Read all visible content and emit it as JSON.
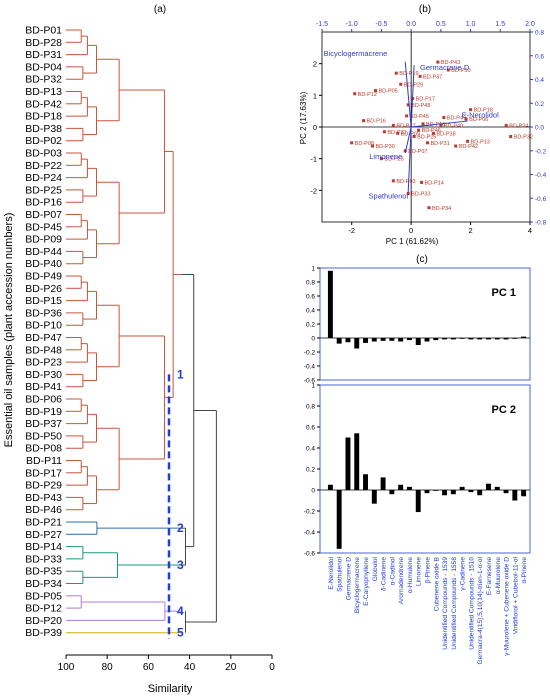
{
  "chart_data": [
    {
      "type": "dendrogram",
      "panel_label": "(a)",
      "xlabel": "Similarity",
      "ylabel": "Essential oil samples (plant accession numbers)",
      "xlim": [
        100,
        0
      ],
      "xticks": [
        "100",
        "80",
        "60",
        "40",
        "20",
        "0"
      ],
      "leaves": [
        "BD-P01",
        "BD-P28",
        "BD-P31",
        "BD-P04",
        "BD-P32",
        "BD-P13",
        "BD-P42",
        "BD-P18",
        "BD-P38",
        "BD-P02",
        "BD-P03",
        "BD-P22",
        "BD-P24",
        "BD-P25",
        "BD-P16",
        "BD-P07",
        "BD-P45",
        "BD-P09",
        "BD-P44",
        "BD-P40",
        "BD-P49",
        "BD-P26",
        "BD-P15",
        "BD-P36",
        "BD-P10",
        "BD-P47",
        "BD-P48",
        "BD-P23",
        "BD-P30",
        "BD-P41",
        "BD-P06",
        "BD-P19",
        "BD-P37",
        "BD-P50",
        "BD-P08",
        "BD-P11",
        "BD-P17",
        "BD-P29",
        "BD-P43",
        "BD-P46",
        "BD-P21",
        "BD-P27",
        "BD-P14",
        "BD-P33",
        "BD-P35",
        "BD-P34",
        "BD-P05",
        "BD-P12",
        "BD-P20",
        "BD-P39"
      ],
      "cut_similarity": 50,
      "clusters": [
        {
          "label": "1",
          "first_leaf": 0,
          "last_leaf": 39,
          "color": "#c8553d"
        },
        {
          "label": "2",
          "first_leaf": 40,
          "last_leaf": 41,
          "color": "#2b6cb0"
        },
        {
          "label": "3",
          "first_leaf": 42,
          "last_leaf": 45,
          "color": "#1a9c7a"
        },
        {
          "label": "4",
          "first_leaf": 46,
          "last_leaf": 48,
          "color": "#b07cd6"
        },
        {
          "label": "5",
          "first_leaf": 49,
          "last_leaf": 49,
          "color": "#d4b106"
        }
      ],
      "root_color": "#444444",
      "cut_color": "#1f3fd6"
    },
    {
      "type": "scatter",
      "panel_label": "(b)",
      "xlabel": "PC 1 (61.62%)",
      "ylabel": "PC 2 (17.63%)",
      "xlim": [
        -3,
        4
      ],
      "ylim": [
        -3,
        3
      ],
      "xticks": [
        -2,
        0,
        2,
        4
      ],
      "yticks": [
        -2,
        -1,
        0,
        1,
        2
      ],
      "top_xlim": [
        -1.5,
        2.0
      ],
      "top_xticks": [
        "-1.5",
        "-1.0",
        "-0.5",
        "0.0",
        "0.5",
        "1.0",
        "1.5",
        "2.0"
      ],
      "right_ylim": [
        -0.8,
        0.8
      ],
      "right_yticks": [
        "-0.8",
        "-0.6",
        "-0.4",
        "-0.2",
        "0.0",
        "0.2",
        "0.4",
        "0.6",
        "0.8"
      ],
      "point_color": "#c0392b",
      "loading_color": "#2e3ccc",
      "points": [
        {
          "label": "BD-P43",
          "x": 0.9,
          "y": 2.05
        },
        {
          "label": "BD-P50",
          "x": 1.25,
          "y": 1.8
        },
        {
          "label": "BD-P37",
          "x": 0.3,
          "y": 1.6
        },
        {
          "label": "BD-P19",
          "x": -0.5,
          "y": 1.7
        },
        {
          "label": "BD-P29",
          "x": -0.35,
          "y": 1.35
        },
        {
          "label": "BD-P12",
          "x": -1.9,
          "y": 1.05
        },
        {
          "label": "BD-P05",
          "x": -1.2,
          "y": 1.15
        },
        {
          "label": "BD-P17",
          "x": 0.05,
          "y": 0.9
        },
        {
          "label": "BD-P48",
          "x": -0.1,
          "y": 0.7
        },
        {
          "label": "BD-P18",
          "x": 2.0,
          "y": 0.55
        },
        {
          "label": "BD-P49",
          "x": 1.1,
          "y": 0.3
        },
        {
          "label": "BD-P06",
          "x": 1.85,
          "y": 0.25
        },
        {
          "label": "BD-P40",
          "x": 1.0,
          "y": 0.05
        },
        {
          "label": "BD-P24",
          "x": 3.2,
          "y": 0.05
        },
        {
          "label": "BD-P32",
          "x": 3.35,
          "y": -0.3
        },
        {
          "label": "BD-P13",
          "x": 1.9,
          "y": -0.45
        },
        {
          "label": "BD-P42",
          "x": 1.5,
          "y": -0.6
        },
        {
          "label": "BD-P09",
          "x": -0.45,
          "y": -0.2
        },
        {
          "label": "BD-P31",
          "x": 0.55,
          "y": -0.5
        },
        {
          "label": "BD-P25",
          "x": 0.1,
          "y": -0.3
        },
        {
          "label": "BD-P08",
          "x": -2.0,
          "y": -0.5
        },
        {
          "label": "BD-P30",
          "x": -1.3,
          "y": -0.6
        },
        {
          "label": "BD-P07",
          "x": -0.2,
          "y": -0.75
        },
        {
          "label": "BD-P23",
          "x": -1.0,
          "y": -1.0
        },
        {
          "label": "BD-P14",
          "x": 0.35,
          "y": -1.75
        },
        {
          "label": "BD-P03",
          "x": -0.6,
          "y": -1.7
        },
        {
          "label": "BD-P33",
          "x": -0.1,
          "y": -2.1
        },
        {
          "label": "BD-P34",
          "x": 0.6,
          "y": -2.55
        },
        {
          "label": "BD-P21",
          "x": -0.9,
          "y": -0.15
        },
        {
          "label": "BD-P45",
          "x": -0.15,
          "y": 0.35
        },
        {
          "label": "BD-P10",
          "x": 0.4,
          "y": 0.1
        },
        {
          "label": "BD-P47",
          "x": -0.6,
          "y": 0.05
        },
        {
          "label": "BD-P46",
          "x": 0.25,
          "y": -0.1
        },
        {
          "label": "BD-P16",
          "x": -1.6,
          "y": 0.2
        },
        {
          "label": "BD-P38",
          "x": 0.75,
          "y": -0.2
        }
      ],
      "loadings": [
        {
          "label": "Bicyclogermacrene",
          "x": -0.1,
          "y": 0.55
        },
        {
          "label": "Germacrene D",
          "x": 0.05,
          "y": 0.52
        },
        {
          "label": "E-Nerolidol",
          "x": 0.95,
          "y": 0.05
        },
        {
          "label": "Limonene",
          "x": -0.1,
          "y": -0.22
        },
        {
          "label": "Spathulenol",
          "x": -0.05,
          "y": -0.55
        }
      ]
    },
    {
      "type": "bar",
      "panel_label": "(c)",
      "categories": [
        "E-Nerolidol",
        "Spathulenol",
        "Germacrene D",
        "Bicyclogermacrene",
        "E-Caryophyllene",
        "Globulol",
        "δ-Cadinene",
        "α-Cadinol",
        "Aromadendrene",
        "α-Humulene",
        "Limonene",
        "β-Pinene",
        "Cubenene oxide B",
        "Unidentified Compounds - 1539",
        "Unidentified Compounds - 1558",
        "γ-Cadinene",
        "Unidentified Compounds - 1510",
        "Germacra-4(15),5,10(14)-trien-1-α-ol",
        "E-Farnesene",
        "α-Muurolene",
        "γ-Muurolene + Cubenene oxide D",
        "Viridiflorol + Cubebol-11-ol",
        "α-Pinene"
      ],
      "ylim": [
        -0.6,
        1.0
      ],
      "yticks": [
        "1",
        "0.8",
        "0.6",
        "0.4",
        "0.2",
        "0",
        "-0.2",
        "-0.4",
        "-0.6"
      ],
      "bar_color": "#000000",
      "series": [
        {
          "name": "PC 1",
          "values": [
            0.96,
            -0.08,
            -0.06,
            -0.15,
            -0.07,
            -0.05,
            -0.04,
            -0.04,
            -0.05,
            -0.03,
            -0.1,
            -0.05,
            -0.03,
            -0.02,
            -0.02,
            -0.01,
            -0.02,
            -0.02,
            -0.02,
            -0.02,
            -0.02,
            -0.01,
            0.02
          ]
        },
        {
          "name": "PC 2",
          "values": [
            0.05,
            -0.56,
            0.5,
            0.54,
            0.15,
            -0.13,
            0.12,
            -0.04,
            0.05,
            0.03,
            -0.21,
            -0.03,
            0.0,
            -0.05,
            -0.04,
            0.03,
            -0.02,
            -0.05,
            0.06,
            0.03,
            -0.03,
            -0.1,
            -0.06
          ]
        }
      ]
    }
  ]
}
